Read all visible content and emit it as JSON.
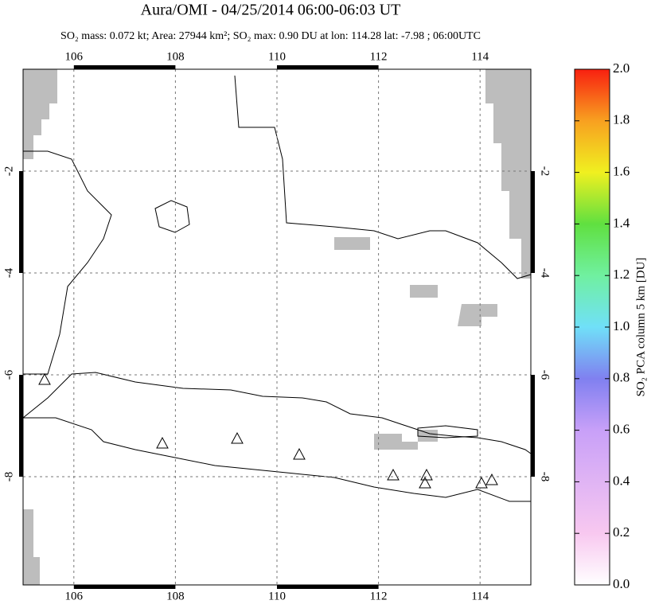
{
  "chart_data": {
    "type": "map",
    "title": "Aura/OMI - 04/25/2014 06:00-06:03 UT",
    "subtitle": "SO₂ mass: 0.072 kt; Area: 27944 km²; SO₂ max: 0.90 DU at lon: 114.28 lat: -7.98 ; 06:00UTC",
    "xlim": [
      105,
      115
    ],
    "xticks": [
      106,
      108,
      110,
      112,
      114
    ],
    "ylim": [
      -10.125,
      0
    ],
    "yticks": [
      -2,
      -4,
      -6,
      -8
    ],
    "grid": true,
    "colorbar": {
      "label": "SO₂ PCA column 5 km [DU]",
      "lim": [
        0,
        2
      ],
      "ticks": [
        {
          "value": 0,
          "label": "0.0"
        },
        {
          "value": 0.2,
          "label": "0.2"
        },
        {
          "value": 0.4,
          "label": "0.4"
        },
        {
          "value": 0.6,
          "label": "0.6"
        },
        {
          "value": 0.8,
          "label": "0.8"
        },
        {
          "value": 1,
          "label": "1.0"
        },
        {
          "value": 1.2,
          "label": "1.2"
        },
        {
          "value": 1.4,
          "label": "1.4"
        },
        {
          "value": 1.6,
          "label": "1.6"
        },
        {
          "value": 1.8,
          "label": "1.8"
        },
        {
          "value": 2,
          "label": "2.0"
        }
      ]
    }
  }
}
